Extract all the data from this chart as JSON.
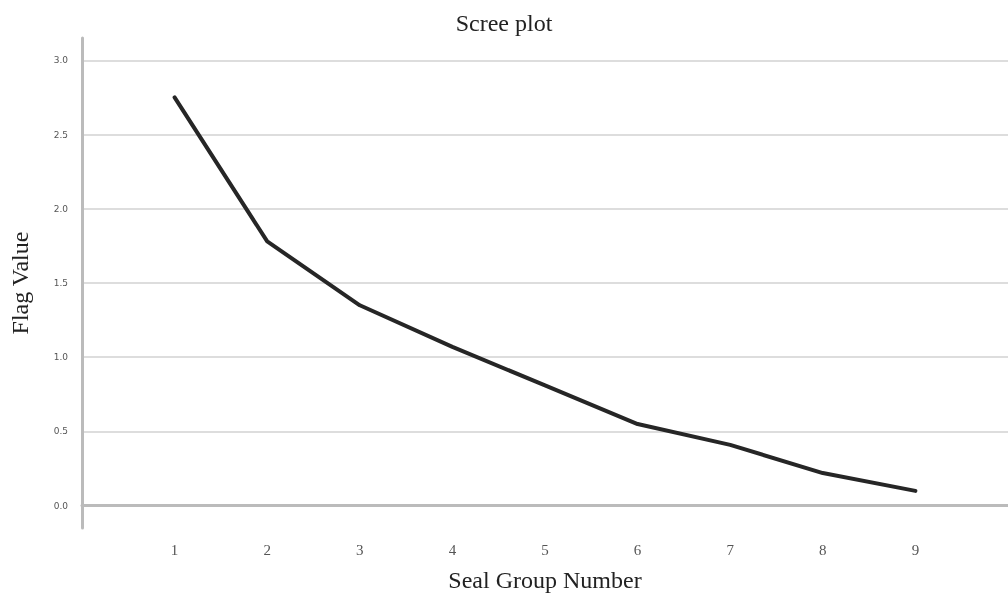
{
  "chart_data": {
    "type": "line",
    "title": "Scree plot",
    "xlabel": "Seal Group Number",
    "ylabel": "Flag Value",
    "x": [
      1,
      2,
      3,
      4,
      5,
      6,
      7,
      8,
      9
    ],
    "series": [
      {
        "color": "#262626",
        "values": [
          2.75,
          1.78,
          1.35,
          1.07,
          0.81,
          0.55,
          0.41,
          0.22,
          0.1
        ]
      }
    ],
    "xlim": [
      0,
      10
    ],
    "xticks": [
      1,
      2,
      3,
      4,
      5,
      6,
      7,
      8,
      9
    ],
    "ylim": [
      -0.15,
      3.15
    ],
    "yticks": [
      {
        "value": 0,
        "label": "0.0"
      },
      {
        "value": 0.5,
        "label": "0.5"
      },
      {
        "value": 1,
        "label": "1.0"
      },
      {
        "value": 1.5,
        "label": "1.5"
      },
      {
        "value": 2,
        "label": "2.0"
      },
      {
        "value": 2.5,
        "label": "2.5"
      },
      {
        "value": 3,
        "label": "3.0"
      }
    ],
    "grid": "y",
    "marker": "none",
    "line_style": "solid"
  }
}
